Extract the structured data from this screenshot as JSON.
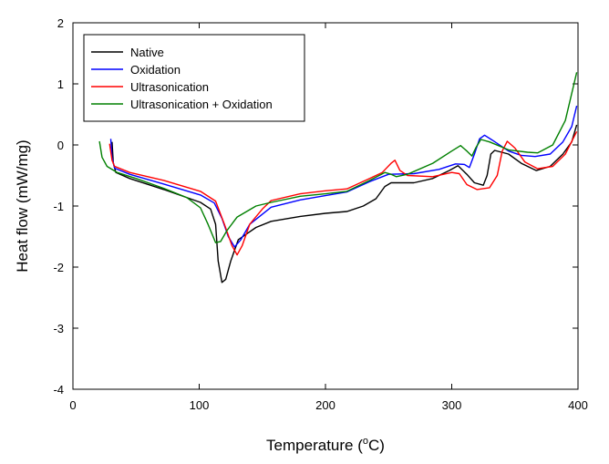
{
  "chart_data": {
    "type": "line",
    "title": "",
    "xlabel": "Temperature (",
    "xlabel_sup": "o",
    "xlabel_tail": "C)",
    "ylabel": "Heat flow (mW/mg)",
    "xlim": [
      0,
      400
    ],
    "ylim": [
      -4,
      2
    ],
    "xticks": [
      0,
      100,
      200,
      300,
      400
    ],
    "yticks": [
      -4,
      -3,
      -2,
      -1,
      0,
      1,
      2
    ],
    "xtick_labels": [
      "0",
      "100",
      "200",
      "300",
      "400"
    ],
    "ytick_labels": [
      "-4",
      "-3",
      "-2",
      "-1",
      "0",
      "1",
      "2"
    ],
    "grid": false,
    "legend_position": "top-left",
    "series": [
      {
        "name": "Native",
        "color": "#000000",
        "points": [
          [
            31,
            0.05
          ],
          [
            32,
            -0.3
          ],
          [
            34,
            -0.45
          ],
          [
            45,
            -0.55
          ],
          [
            72,
            -0.73
          ],
          [
            101,
            -0.94
          ],
          [
            109,
            -1.05
          ],
          [
            113,
            -1.3
          ],
          [
            115,
            -1.9
          ],
          [
            118,
            -2.25
          ],
          [
            121,
            -2.2
          ],
          [
            125,
            -1.9
          ],
          [
            131,
            -1.55
          ],
          [
            145,
            -1.35
          ],
          [
            157,
            -1.25
          ],
          [
            180,
            -1.17
          ],
          [
            200,
            -1.12
          ],
          [
            217,
            -1.09
          ],
          [
            230,
            -1.0
          ],
          [
            240,
            -0.88
          ],
          [
            247,
            -0.68
          ],
          [
            252,
            -0.62
          ],
          [
            270,
            -0.62
          ],
          [
            285,
            -0.55
          ],
          [
            298,
            -0.42
          ],
          [
            305,
            -0.34
          ],
          [
            312,
            -0.48
          ],
          [
            318,
            -0.62
          ],
          [
            325,
            -0.66
          ],
          [
            328,
            -0.5
          ],
          [
            331,
            -0.15
          ],
          [
            334,
            -0.09
          ],
          [
            345,
            -0.15
          ],
          [
            355,
            -0.3
          ],
          [
            367,
            -0.42
          ],
          [
            378,
            -0.35
          ],
          [
            388,
            -0.15
          ],
          [
            395,
            0.05
          ],
          [
            399,
            0.33
          ]
        ]
      },
      {
        "name": "Oxidation",
        "color": "#0000ff",
        "points": [
          [
            30,
            0.1
          ],
          [
            31,
            -0.2
          ],
          [
            33,
            -0.38
          ],
          [
            45,
            -0.48
          ],
          [
            72,
            -0.64
          ],
          [
            101,
            -0.82
          ],
          [
            112,
            -0.95
          ],
          [
            118,
            -1.2
          ],
          [
            123,
            -1.5
          ],
          [
            128,
            -1.67
          ],
          [
            133,
            -1.55
          ],
          [
            140,
            -1.3
          ],
          [
            157,
            -1.02
          ],
          [
            180,
            -0.9
          ],
          [
            200,
            -0.83
          ],
          [
            217,
            -0.77
          ],
          [
            235,
            -0.6
          ],
          [
            250,
            -0.48
          ],
          [
            270,
            -0.47
          ],
          [
            290,
            -0.4
          ],
          [
            303,
            -0.31
          ],
          [
            310,
            -0.32
          ],
          [
            314,
            -0.37
          ],
          [
            318,
            -0.15
          ],
          [
            322,
            0.1
          ],
          [
            326,
            0.16
          ],
          [
            332,
            0.08
          ],
          [
            345,
            -0.1
          ],
          [
            355,
            -0.17
          ],
          [
            366,
            -0.19
          ],
          [
            378,
            -0.15
          ],
          [
            388,
            0.05
          ],
          [
            395,
            0.3
          ],
          [
            399,
            0.64
          ]
        ]
      },
      {
        "name": "Ultrasonication",
        "color": "#ff0000",
        "points": [
          [
            29,
            0.02
          ],
          [
            31,
            -0.25
          ],
          [
            33,
            -0.35
          ],
          [
            45,
            -0.45
          ],
          [
            72,
            -0.58
          ],
          [
            101,
            -0.76
          ],
          [
            113,
            -0.92
          ],
          [
            120,
            -1.3
          ],
          [
            126,
            -1.65
          ],
          [
            130,
            -1.8
          ],
          [
            134,
            -1.65
          ],
          [
            140,
            -1.3
          ],
          [
            150,
            -1.05
          ],
          [
            157,
            -0.91
          ],
          [
            180,
            -0.8
          ],
          [
            200,
            -0.75
          ],
          [
            217,
            -0.72
          ],
          [
            235,
            -0.55
          ],
          [
            245,
            -0.45
          ],
          [
            252,
            -0.3
          ],
          [
            255,
            -0.25
          ],
          [
            259,
            -0.42
          ],
          [
            265,
            -0.5
          ],
          [
            285,
            -0.52
          ],
          [
            300,
            -0.45
          ],
          [
            306,
            -0.47
          ],
          [
            312,
            -0.65
          ],
          [
            320,
            -0.73
          ],
          [
            330,
            -0.7
          ],
          [
            336,
            -0.5
          ],
          [
            340,
            -0.1
          ],
          [
            344,
            0.06
          ],
          [
            350,
            -0.05
          ],
          [
            358,
            -0.28
          ],
          [
            368,
            -0.39
          ],
          [
            380,
            -0.35
          ],
          [
            390,
            -0.15
          ],
          [
            399,
            0.22
          ]
        ]
      },
      {
        "name": "Ultrasonication + Oxidation",
        "color": "#008000",
        "points": [
          [
            21,
            0.06
          ],
          [
            23,
            -0.2
          ],
          [
            27,
            -0.35
          ],
          [
            35,
            -0.45
          ],
          [
            50,
            -0.55
          ],
          [
            72,
            -0.71
          ],
          [
            90,
            -0.86
          ],
          [
            101,
            -1.03
          ],
          [
            107,
            -1.3
          ],
          [
            113,
            -1.6
          ],
          [
            117,
            -1.58
          ],
          [
            122,
            -1.4
          ],
          [
            130,
            -1.18
          ],
          [
            145,
            -1.0
          ],
          [
            157,
            -0.94
          ],
          [
            180,
            -0.84
          ],
          [
            200,
            -0.8
          ],
          [
            217,
            -0.76
          ],
          [
            235,
            -0.58
          ],
          [
            247,
            -0.45
          ],
          [
            252,
            -0.48
          ],
          [
            256,
            -0.52
          ],
          [
            265,
            -0.48
          ],
          [
            285,
            -0.3
          ],
          [
            300,
            -0.1
          ],
          [
            307,
            -0.01
          ],
          [
            312,
            -0.1
          ],
          [
            316,
            -0.18
          ],
          [
            319,
            -0.05
          ],
          [
            323,
            0.09
          ],
          [
            330,
            0.05
          ],
          [
            345,
            -0.08
          ],
          [
            360,
            -0.12
          ],
          [
            368,
            -0.13
          ],
          [
            380,
            0.0
          ],
          [
            390,
            0.4
          ],
          [
            399,
            1.19
          ]
        ]
      }
    ]
  }
}
